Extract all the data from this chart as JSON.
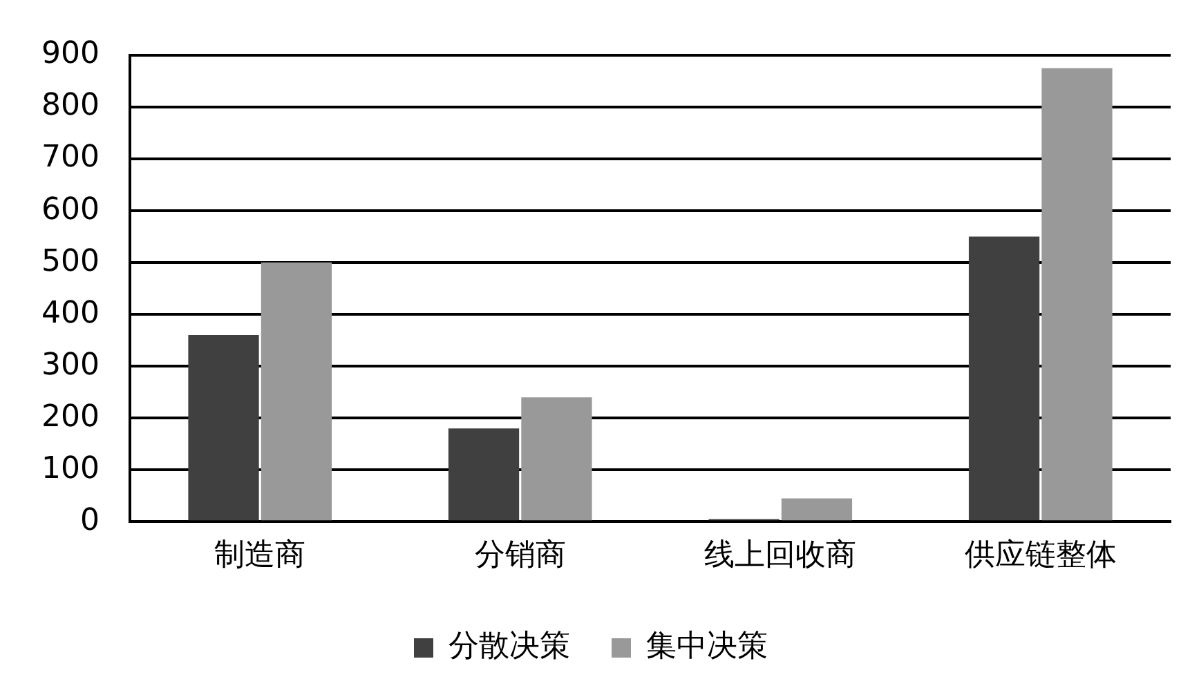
{
  "chart_data": {
    "type": "bar",
    "categories": [
      "制造商",
      "分销商",
      "线上回收商",
      "供应链整体"
    ],
    "series": [
      {
        "name": "分散决策",
        "color": "#404040",
        "values": [
          360,
          180,
          5,
          550
        ]
      },
      {
        "name": "集中决策",
        "color": "#999999",
        "values": [
          500,
          240,
          45,
          875
        ]
      }
    ],
    "ylim": [
      0,
      900
    ],
    "yticks": [
      0,
      100,
      200,
      300,
      400,
      500,
      600,
      700,
      800,
      900
    ],
    "grid": "y",
    "legend": "bottom"
  }
}
